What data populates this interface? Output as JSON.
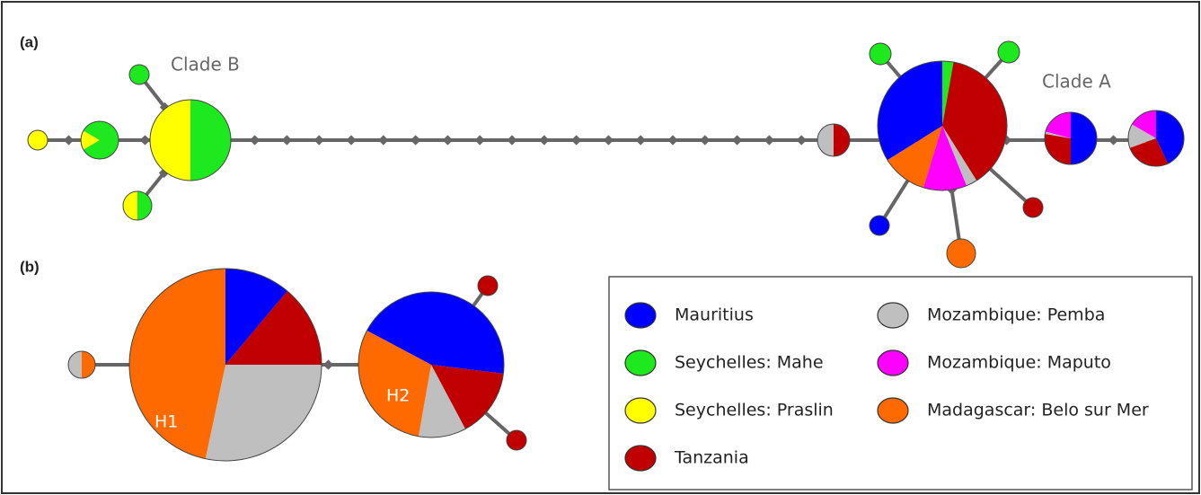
{
  "panels": {
    "a": "(a)",
    "b": "(b)"
  },
  "clades": {
    "b": "Clade B",
    "a": "Clade A"
  },
  "haplotypes": {
    "h1": "H1",
    "h2": "H2"
  },
  "legend": [
    {
      "label": "Mauritius",
      "color": "#0000ff"
    },
    {
      "label": "Seychelles: Mahe",
      "color": "#1ee81e"
    },
    {
      "label": "Seychelles: Praslin",
      "color": "#ffff00"
    },
    {
      "label": "Tanzania",
      "color": "#c00000"
    },
    {
      "label": "Mozambique: Pemba",
      "color": "#bfbfbf"
    },
    {
      "label": "Mozambique: Maputo",
      "color": "#ff00ff"
    },
    {
      "label": "Madagascar: Belo sur Mer",
      "color": "#ff6a00"
    }
  ]
}
